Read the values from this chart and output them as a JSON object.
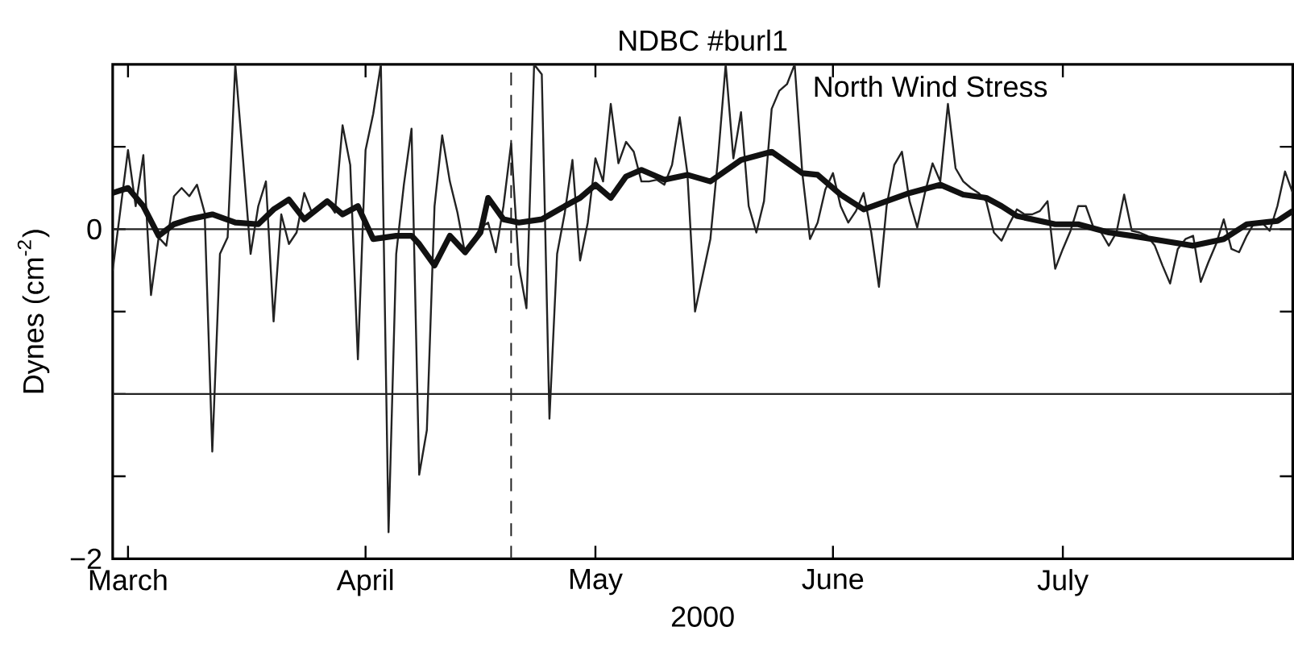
{
  "chart_data": {
    "type": "line",
    "title": "NDBC #burl1",
    "xlabel": "2000",
    "ylabel": "Dynes (cm$^{-2}$)",
    "xlim": [
      "2000-02-28",
      "2000-07-31"
    ],
    "ylim": [
      -2,
      1
    ],
    "xticks": [
      {
        "value": "2000-03-01",
        "label": "March"
      },
      {
        "value": "2000-04-01",
        "label": "April"
      },
      {
        "value": "2000-05-01",
        "label": "May"
      },
      {
        "value": "2000-06-01",
        "label": "June"
      },
      {
        "value": "2000-07-01",
        "label": "July"
      }
    ],
    "yticks": [
      {
        "value": -2,
        "label": "−2"
      },
      {
        "value": -1.5,
        "label": null
      },
      {
        "value": -1,
        "label": null
      },
      {
        "value": -0.5,
        "label": null
      },
      0,
      {
        "value": 0.5,
        "label": null
      }
    ],
    "marker": "none",
    "annotations": [
      "North Wind Stress"
    ],
    "ref_lines": [
      {
        "axis": "y",
        "value": 0,
        "color": "#222222"
      },
      {
        "axis": "y",
        "value": -1,
        "color": "#222222"
      },
      {
        "axis": "x",
        "value": "2000-04-20",
        "color": "#222222",
        "line_style": "dashed"
      }
    ],
    "series": [
      {
        "color": "#222222",
        "x": [
          "2000-02-28",
          "2000-03-01",
          "2000-03-02",
          "2000-03-03",
          "2000-03-04",
          "2000-03-05",
          "2000-03-06",
          "2000-03-07",
          "2000-03-08",
          "2000-03-09",
          "2000-03-10",
          "2000-03-11",
          "2000-03-12",
          "2000-03-13",
          "2000-03-14",
          "2000-03-15",
          "2000-03-16",
          "2000-03-17",
          "2000-03-18",
          "2000-03-19",
          "2000-03-20",
          "2000-03-21",
          "2000-03-22",
          "2000-03-23",
          "2000-03-24",
          "2000-03-25",
          "2000-03-26",
          "2000-03-27",
          "2000-03-28",
          "2000-03-29",
          "2000-03-30",
          "2000-03-31",
          "2000-04-01",
          "2000-04-02",
          "2000-04-03",
          "2000-04-04",
          "2000-04-05",
          "2000-04-06",
          "2000-04-07",
          "2000-04-08",
          "2000-04-09",
          "2000-04-10",
          "2000-04-11",
          "2000-04-12",
          "2000-04-13",
          "2000-04-14",
          "2000-04-15",
          "2000-04-16",
          "2000-04-17",
          "2000-04-18",
          "2000-04-19",
          "2000-04-20",
          "2000-04-21",
          "2000-04-22",
          "2000-04-23",
          "2000-04-24",
          "2000-04-25",
          "2000-04-26",
          "2000-04-27",
          "2000-04-28",
          "2000-04-29",
          "2000-04-30",
          "2000-05-01",
          "2000-05-02",
          "2000-05-03",
          "2000-05-04",
          "2000-05-05",
          "2000-05-06",
          "2000-05-07",
          "2000-05-08",
          "2000-05-09",
          "2000-05-10",
          "2000-05-11",
          "2000-05-12",
          "2000-05-13",
          "2000-05-14",
          "2000-05-15",
          "2000-05-16",
          "2000-05-17",
          "2000-05-18",
          "2000-05-19",
          "2000-05-20",
          "2000-05-21",
          "2000-05-22",
          "2000-05-23",
          "2000-05-24",
          "2000-05-25",
          "2000-05-26",
          "2000-05-27",
          "2000-05-28",
          "2000-05-29",
          "2000-05-30",
          "2000-05-31",
          "2000-06-01",
          "2000-06-02",
          "2000-06-03",
          "2000-06-04",
          "2000-06-05",
          "2000-06-06",
          "2000-06-07",
          "2000-06-08",
          "2000-06-09",
          "2000-06-10",
          "2000-06-11",
          "2000-06-12",
          "2000-06-13",
          "2000-06-14",
          "2000-06-15",
          "2000-06-16",
          "2000-06-17",
          "2000-06-18",
          "2000-06-19",
          "2000-06-20",
          "2000-06-21",
          "2000-06-22",
          "2000-06-23",
          "2000-06-24",
          "2000-06-25",
          "2000-06-26",
          "2000-06-27",
          "2000-06-28",
          "2000-06-29",
          "2000-06-30",
          "2000-07-01",
          "2000-07-02",
          "2000-07-03",
          "2000-07-04",
          "2000-07-05",
          "2000-07-06",
          "2000-07-07",
          "2000-07-08",
          "2000-07-09",
          "2000-07-10",
          "2000-07-11",
          "2000-07-12",
          "2000-07-13",
          "2000-07-14",
          "2000-07-15",
          "2000-07-16",
          "2000-07-17",
          "2000-07-18",
          "2000-07-19",
          "2000-07-20",
          "2000-07-21",
          "2000-07-22",
          "2000-07-23",
          "2000-07-24",
          "2000-07-25",
          "2000-07-26",
          "2000-07-27",
          "2000-07-28",
          "2000-07-29",
          "2000-07-30",
          "2000-07-31"
        ],
        "values": [
          -0.25,
          0.48,
          0.14,
          0.45,
          -0.4,
          -0.05,
          -0.1,
          0.2,
          0.25,
          0.2,
          0.27,
          0.1,
          -1.35,
          -0.15,
          -0.05,
          1.0,
          0.43,
          -0.15,
          0.14,
          0.29,
          -0.56,
          0.09,
          -0.09,
          -0.02,
          0.22,
          0.1,
          0.14,
          0.17,
          0.1,
          0.63,
          0.39,
          -0.79,
          0.48,
          0.7,
          1.0,
          -1.84,
          -0.15,
          0.27,
          0.61,
          -1.49,
          -1.22,
          0.14,
          0.57,
          0.29,
          0.1,
          -0.15,
          -0.07,
          0.01,
          0.04,
          -0.14,
          0.14,
          0.52,
          -0.22,
          -0.48,
          1.0,
          0.94,
          -1.15,
          -0.15,
          0.1,
          0.42,
          -0.19,
          0.04,
          0.43,
          0.29,
          0.76,
          0.4,
          0.53,
          0.47,
          0.29,
          0.29,
          0.3,
          0.27,
          0.39,
          0.68,
          0.34,
          -0.5,
          -0.28,
          -0.06,
          0.43,
          1.0,
          0.43,
          0.71,
          0.14,
          -0.02,
          0.17,
          0.73,
          0.84,
          0.88,
          1.0,
          0.34,
          -0.06,
          0.04,
          0.24,
          0.34,
          0.14,
          0.04,
          0.11,
          0.22,
          -0.02,
          -0.35,
          0.14,
          0.39,
          0.47,
          0.17,
          0.01,
          0.22,
          0.4,
          0.29,
          0.76,
          0.37,
          0.29,
          0.25,
          0.22,
          0.17,
          -0.02,
          -0.07,
          0.03,
          0.12,
          0.09,
          0.09,
          0.11,
          0.17,
          -0.24,
          -0.12,
          -0.01,
          0.14,
          0.14,
          0.01,
          -0.02,
          -0.1,
          -0.02,
          0.21,
          -0.01,
          -0.02,
          -0.04,
          -0.1,
          -0.22,
          -0.33,
          -0.12,
          -0.06,
          -0.04,
          -0.32,
          -0.2,
          -0.09,
          0.06,
          -0.12,
          -0.14,
          -0.04,
          0.04,
          0.04,
          -0.01,
          0.14,
          0.35,
          0.22
        ]
      },
      {
        "color": "#111111",
        "x": [
          "2000-02-28",
          "2000-03-01",
          "2000-03-03",
          "2000-03-05",
          "2000-03-07",
          "2000-03-09",
          "2000-03-12",
          "2000-03-15",
          "2000-03-18",
          "2000-03-20",
          "2000-03-22",
          "2000-03-24",
          "2000-03-27",
          "2000-03-29",
          "2000-03-31",
          "2000-04-02",
          "2000-04-05",
          "2000-04-07",
          "2000-04-08",
          "2000-04-10",
          "2000-04-12",
          "2000-04-14",
          "2000-04-16",
          "2000-04-17",
          "2000-04-19",
          "2000-04-21",
          "2000-04-24",
          "2000-04-27",
          "2000-04-29",
          "2000-05-01",
          "2000-05-03",
          "2000-05-05",
          "2000-05-07",
          "2000-05-10",
          "2000-05-13",
          "2000-05-16",
          "2000-05-20",
          "2000-05-24",
          "2000-05-28",
          "2000-05-30",
          "2000-06-02",
          "2000-06-05",
          "2000-06-08",
          "2000-06-11",
          "2000-06-15",
          "2000-06-18",
          "2000-06-21",
          "2000-06-23",
          "2000-06-25",
          "2000-06-30",
          "2000-07-03",
          "2000-07-07",
          "2000-07-10",
          "2000-07-14",
          "2000-07-18",
          "2000-07-22",
          "2000-07-25",
          "2000-07-29",
          "2000-07-31"
        ],
        "values": [
          0.22,
          0.25,
          0.14,
          -0.04,
          0.03,
          0.06,
          0.09,
          0.04,
          0.03,
          0.12,
          0.18,
          0.06,
          0.17,
          0.09,
          0.14,
          -0.06,
          -0.04,
          -0.04,
          -0.09,
          -0.22,
          -0.04,
          -0.14,
          -0.02,
          0.19,
          0.06,
          0.04,
          0.06,
          0.14,
          0.19,
          0.27,
          0.19,
          0.32,
          0.36,
          0.3,
          0.33,
          0.29,
          0.42,
          0.47,
          0.34,
          0.33,
          0.21,
          0.12,
          0.17,
          0.22,
          0.27,
          0.21,
          0.19,
          0.14,
          0.08,
          0.03,
          0.03,
          -0.02,
          -0.04,
          -0.07,
          -0.1,
          -0.06,
          0.03,
          0.05,
          0.11
        ]
      }
    ]
  }
}
